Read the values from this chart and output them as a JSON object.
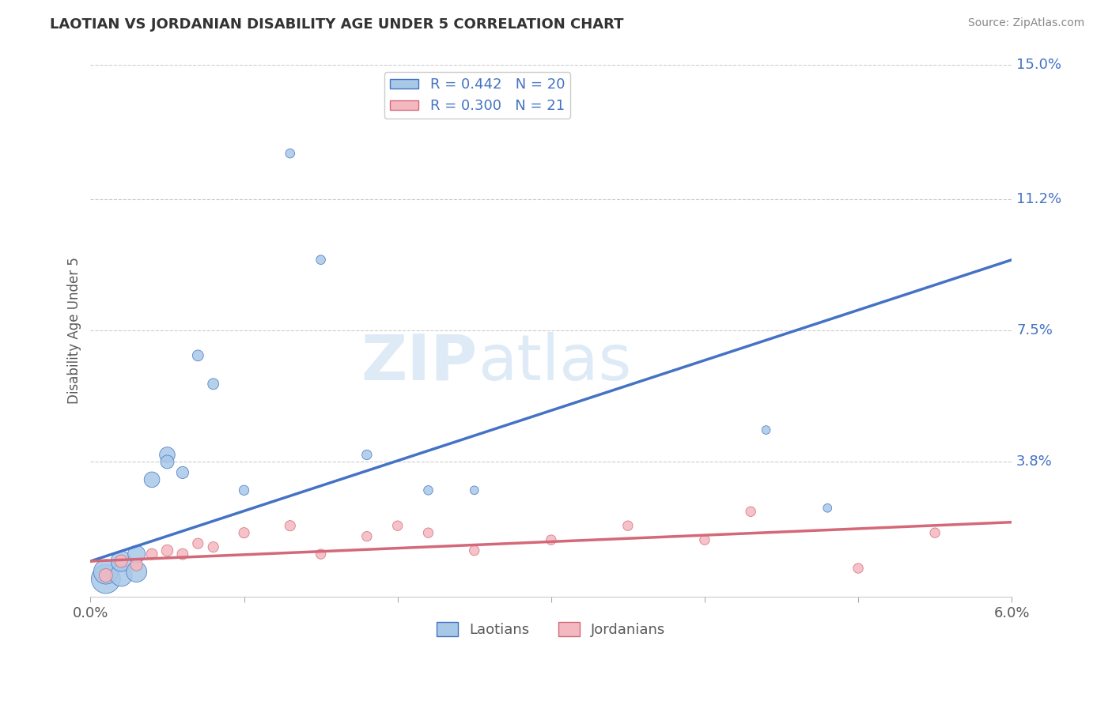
{
  "title": "LAOTIAN VS JORDANIAN DISABILITY AGE UNDER 5 CORRELATION CHART",
  "source": "Source: ZipAtlas.com",
  "ylabel": "Disability Age Under 5",
  "xlabel": "",
  "xlim": [
    0.0,
    0.06
  ],
  "ylim": [
    0.0,
    0.15
  ],
  "xticks": [
    0.0,
    0.01,
    0.02,
    0.03,
    0.04,
    0.05,
    0.06
  ],
  "xtick_labels": [
    "0.0%",
    "",
    "",
    "",
    "",
    "",
    "6.0%"
  ],
  "ytick_positions": [
    0.038,
    0.075,
    0.112,
    0.15
  ],
  "ytick_labels": [
    "3.8%",
    "7.5%",
    "11.2%",
    "15.0%"
  ],
  "watermark_zip": "ZIP",
  "watermark_atlas": "atlas",
  "laotian_color": "#a8c8e8",
  "laotian_color_dark": "#4472c4",
  "jordanian_color": "#f4b8c0",
  "jordanian_color_dark": "#d46878",
  "laotian_R": 0.442,
  "laotian_N": 20,
  "jordanian_R": 0.3,
  "jordanian_N": 21,
  "laotian_x": [
    0.001,
    0.001,
    0.002,
    0.002,
    0.003,
    0.003,
    0.004,
    0.005,
    0.005,
    0.006,
    0.007,
    0.008,
    0.01,
    0.013,
    0.015,
    0.018,
    0.022,
    0.025,
    0.044,
    0.048
  ],
  "laotian_y": [
    0.005,
    0.007,
    0.006,
    0.01,
    0.007,
    0.012,
    0.033,
    0.04,
    0.038,
    0.035,
    0.068,
    0.06,
    0.03,
    0.125,
    0.095,
    0.04,
    0.03,
    0.03,
    0.047,
    0.025
  ],
  "laotian_size": [
    700,
    500,
    400,
    350,
    350,
    250,
    200,
    200,
    150,
    120,
    100,
    100,
    80,
    70,
    70,
    80,
    70,
    60,
    60,
    60
  ],
  "jordanian_x": [
    0.001,
    0.002,
    0.003,
    0.004,
    0.005,
    0.006,
    0.007,
    0.008,
    0.01,
    0.013,
    0.015,
    0.018,
    0.02,
    0.022,
    0.025,
    0.03,
    0.035,
    0.04,
    0.043,
    0.05,
    0.055
  ],
  "jordanian_y": [
    0.006,
    0.01,
    0.009,
    0.012,
    0.013,
    0.012,
    0.015,
    0.014,
    0.018,
    0.02,
    0.012,
    0.017,
    0.02,
    0.018,
    0.013,
    0.016,
    0.02,
    0.016,
    0.024,
    0.008,
    0.018
  ],
  "jordanian_size": [
    150,
    130,
    120,
    100,
    110,
    100,
    90,
    90,
    90,
    90,
    80,
    80,
    80,
    80,
    80,
    80,
    80,
    80,
    80,
    80,
    80
  ],
  "grid_color": "#cccccc",
  "bg_color": "#ffffff",
  "title_color": "#333333",
  "source_color": "#888888",
  "axis_color": "#5a5a5a",
  "right_label_color": "#4472c4"
}
